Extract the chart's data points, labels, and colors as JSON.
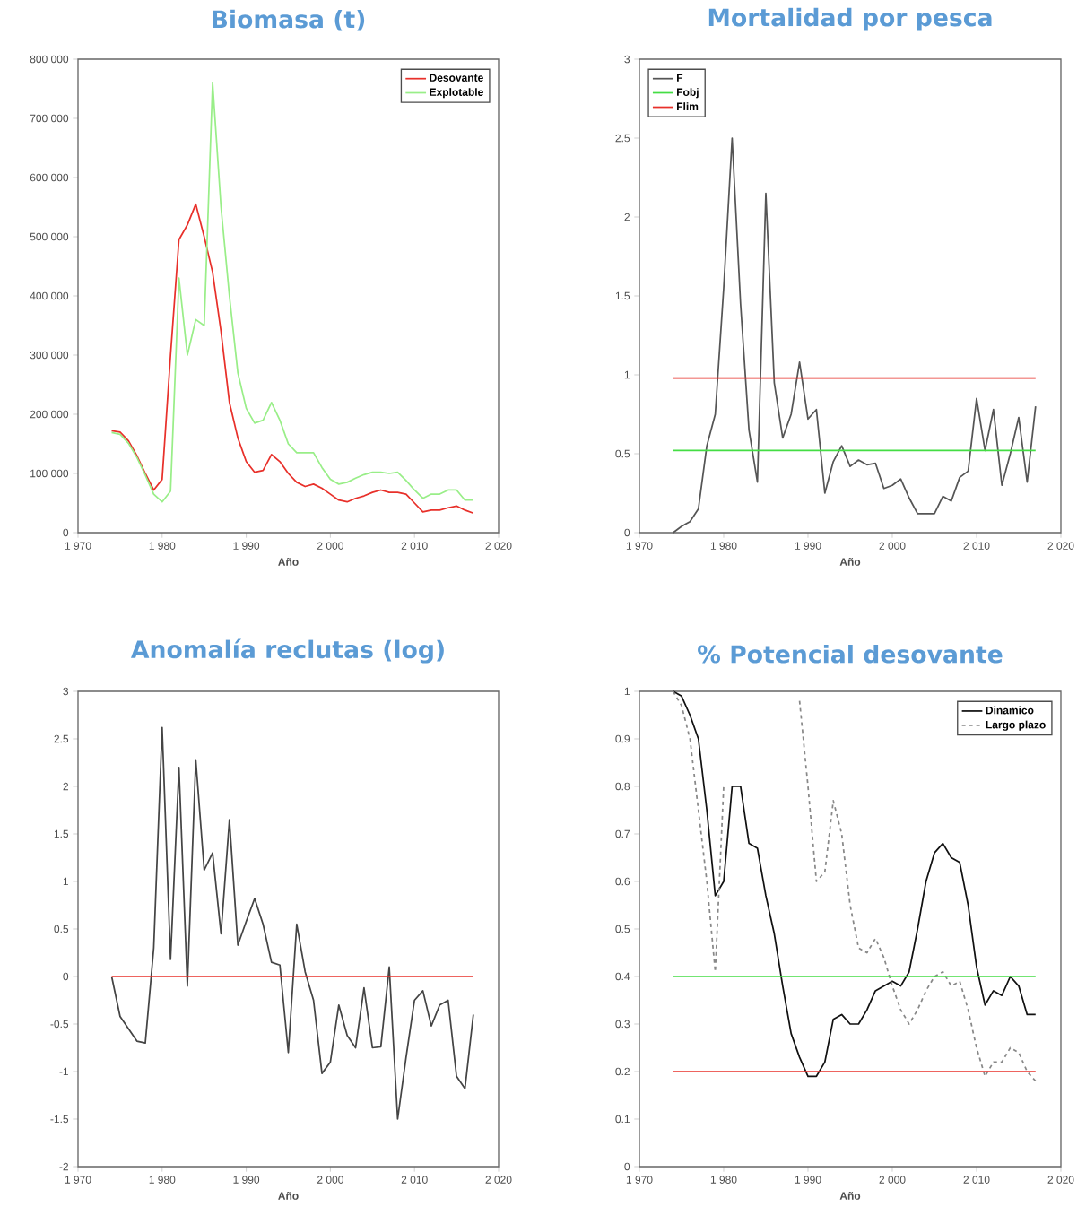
{
  "chart_data": [
    {
      "type": "line",
      "title": "Biomasa (t)",
      "xlabel": "Año",
      "legend": "top right",
      "x": [
        1974,
        1975,
        1976,
        1977,
        1978,
        1979,
        1980,
        1981,
        1982,
        1983,
        1984,
        1985,
        1986,
        1987,
        1988,
        1989,
        1990,
        1991,
        1992,
        1993,
        1994,
        1995,
        1996,
        1997,
        1998,
        1999,
        2000,
        2001,
        2002,
        2003,
        2004,
        2005,
        2006,
        2007,
        2008,
        2009,
        2010,
        2011,
        2012,
        2013,
        2014,
        2015,
        2016,
        2017
      ],
      "series": [
        {
          "name": "Desovante",
          "color": "#e8302a",
          "values": [
            172000,
            170000,
            155000,
            130000,
            100000,
            72000,
            90000,
            300000,
            495000,
            520000,
            555000,
            500000,
            440000,
            340000,
            220000,
            160000,
            120000,
            102000,
            105000,
            132000,
            120000,
            100000,
            85000,
            78000,
            82000,
            75000,
            65000,
            55000,
            52000,
            58000,
            62000,
            68000,
            72000,
            68000,
            68000,
            65000,
            50000,
            35000,
            38000,
            38000,
            42000,
            45000,
            38000,
            33000
          ]
        },
        {
          "name": "Explotable",
          "color": "#99ee88",
          "values": [
            169000,
            166000,
            151000,
            127000,
            97000,
            65000,
            52000,
            70000,
            430000,
            300000,
            360000,
            350000,
            760000,
            550000,
            400000,
            270000,
            210000,
            185000,
            190000,
            220000,
            190000,
            150000,
            135000,
            135000,
            135000,
            110000,
            90000,
            82000,
            85000,
            92000,
            98000,
            102000,
            102000,
            100000,
            102000,
            88000,
            72000,
            58000,
            65000,
            65000,
            72000,
            72000,
            55000,
            55000
          ]
        }
      ],
      "xlim": [
        1970,
        2020
      ],
      "xticks": [
        {
          "value": 1970,
          "label": "1 970"
        },
        {
          "value": 1980,
          "label": "1 980"
        },
        {
          "value": 1990,
          "label": "1 990"
        },
        {
          "value": 2000,
          "label": "2 000"
        },
        {
          "value": 2010,
          "label": "2 010"
        },
        {
          "value": 2020,
          "label": "2 020"
        }
      ],
      "ylim": [
        0,
        800000
      ],
      "yticks": [
        {
          "value": 0,
          "label": "0"
        },
        {
          "value": 100000,
          "label": "100 000"
        },
        {
          "value": 200000,
          "label": "200 000"
        },
        {
          "value": 300000,
          "label": "300 000"
        },
        {
          "value": 400000,
          "label": "400 000"
        },
        {
          "value": 500000,
          "label": "500 000"
        },
        {
          "value": 600000,
          "label": "600 000"
        },
        {
          "value": 700000,
          "label": "700 000"
        },
        {
          "value": 800000,
          "label": "800 000"
        }
      ]
    },
    {
      "type": "line",
      "title": "Mortalidad por pesca",
      "xlabel": "Año",
      "legend": "top left",
      "x": [
        1974,
        1975,
        1976,
        1977,
        1978,
        1979,
        1980,
        1981,
        1982,
        1983,
        1984,
        1985,
        1986,
        1987,
        1988,
        1989,
        1990,
        1991,
        1992,
        1993,
        1994,
        1995,
        1996,
        1997,
        1998,
        1999,
        2000,
        2001,
        2002,
        2003,
        2004,
        2005,
        2006,
        2007,
        2008,
        2009,
        2010,
        2011,
        2012,
        2013,
        2014,
        2015,
        2016,
        2017
      ],
      "series": [
        {
          "name": "F",
          "color": "#555555",
          "values": [
            0,
            0.04,
            0.07,
            0.15,
            0.55,
            0.75,
            1.55,
            2.5,
            1.45,
            0.65,
            0.32,
            2.15,
            0.95,
            0.6,
            0.75,
            1.08,
            0.72,
            0.78,
            0.25,
            0.45,
            0.55,
            0.42,
            0.46,
            0.43,
            0.44,
            0.28,
            0.3,
            0.34,
            0.22,
            0.12,
            0.12,
            0.12,
            0.23,
            0.2,
            0.35,
            0.39,
            0.85,
            0.52,
            0.78,
            0.3,
            0.5,
            0.73,
            0.32,
            0.8
          ]
        },
        {
          "name": "Fobj",
          "color": "#44dd44",
          "values": [
            0.52,
            0.52,
            0.52,
            0.52,
            0.52,
            0.52,
            0.52,
            0.52,
            0.52,
            0.52,
            0.52,
            0.52,
            0.52,
            0.52,
            0.52,
            0.52,
            0.52,
            0.52,
            0.52,
            0.52,
            0.52,
            0.52,
            0.52,
            0.52,
            0.52,
            0.52,
            0.52,
            0.52,
            0.52,
            0.52,
            0.52,
            0.52,
            0.52,
            0.52,
            0.52,
            0.52,
            0.52,
            0.52,
            0.52,
            0.52,
            0.52,
            0.52,
            0.52,
            0.52
          ]
        },
        {
          "name": "Flim",
          "color": "#e8302a",
          "values": [
            0.98,
            0.98,
            0.98,
            0.98,
            0.98,
            0.98,
            0.98,
            0.98,
            0.98,
            0.98,
            0.98,
            0.98,
            0.98,
            0.98,
            0.98,
            0.98,
            0.98,
            0.98,
            0.98,
            0.98,
            0.98,
            0.98,
            0.98,
            0.98,
            0.98,
            0.98,
            0.98,
            0.98,
            0.98,
            0.98,
            0.98,
            0.98,
            0.98,
            0.98,
            0.98,
            0.98,
            0.98,
            0.98,
            0.98,
            0.98,
            0.98,
            0.98,
            0.98,
            0.98
          ]
        }
      ],
      "xlim": [
        1970,
        2020
      ],
      "xticks": [
        {
          "value": 1970,
          "label": "1 970"
        },
        {
          "value": 1980,
          "label": "1 980"
        },
        {
          "value": 1990,
          "label": "1 990"
        },
        {
          "value": 2000,
          "label": "2 000"
        },
        {
          "value": 2010,
          "label": "2 010"
        },
        {
          "value": 2020,
          "label": "2 020"
        }
      ],
      "ylim": [
        0,
        3
      ],
      "yticks": [
        0,
        0.5,
        1,
        1.5,
        2,
        2.5,
        3
      ]
    },
    {
      "type": "line",
      "title": "Anomalía reclutas (log)",
      "xlabel": "Año",
      "x": [
        1974,
        1975,
        1976,
        1977,
        1978,
        1979,
        1980,
        1981,
        1982,
        1983,
        1984,
        1985,
        1986,
        1987,
        1988,
        1989,
        1990,
        1991,
        1992,
        1993,
        1994,
        1995,
        1996,
        1997,
        1998,
        1999,
        2000,
        2001,
        2002,
        2003,
        2004,
        2005,
        2006,
        2007,
        2008,
        2009,
        2010,
        2011,
        2012,
        2013,
        2014,
        2015,
        2016,
        2017
      ],
      "series": [
        {
          "color": "#444444",
          "values": [
            0,
            -0.42,
            -0.55,
            -0.68,
            -0.7,
            0.3,
            2.62,
            0.18,
            2.2,
            -0.1,
            2.28,
            1.12,
            1.3,
            0.45,
            1.65,
            0.33,
            0.58,
            0.82,
            0.55,
            0.15,
            0.12,
            -0.8,
            0.55,
            0.05,
            -0.25,
            -1.02,
            -0.9,
            -0.3,
            -0.62,
            -0.75,
            -0.12,
            -0.75,
            -0.74,
            0.1,
            -1.5,
            -0.85,
            -0.25,
            -0.15,
            -0.52,
            -0.3,
            -0.25,
            -1.05,
            -1.18,
            -0.4
          ]
        },
        {
          "color": "#e8302a",
          "values": [
            0,
            0,
            0,
            0,
            0,
            0,
            0,
            0,
            0,
            0,
            0,
            0,
            0,
            0,
            0,
            0,
            0,
            0,
            0,
            0,
            0,
            0,
            0,
            0,
            0,
            0,
            0,
            0,
            0,
            0,
            0,
            0,
            0,
            0,
            0,
            0,
            0,
            0,
            0,
            0,
            0,
            0,
            0,
            0
          ]
        }
      ],
      "xlim": [
        1970,
        2020
      ],
      "xticks": [
        {
          "value": 1970,
          "label": "1 970"
        },
        {
          "value": 1980,
          "label": "1 980"
        },
        {
          "value": 1990,
          "label": "1 990"
        },
        {
          "value": 2000,
          "label": "2 000"
        },
        {
          "value": 2010,
          "label": "2 010"
        },
        {
          "value": 2020,
          "label": "2 020"
        }
      ],
      "ylim": [
        -2,
        3
      ],
      "yticks": [
        -2,
        -1.5,
        -1,
        -0.5,
        0,
        0.5,
        1,
        1.5,
        2,
        2.5,
        3
      ]
    },
    {
      "type": "line",
      "title": "% Potencial desovante",
      "xlabel": "Año",
      "legend": "top right",
      "x": [
        1974,
        1975,
        1976,
        1977,
        1978,
        1979,
        1980,
        1981,
        1982,
        1983,
        1984,
        1985,
        1986,
        1987,
        1988,
        1989,
        1990,
        1991,
        1992,
        1993,
        1994,
        1995,
        1996,
        1997,
        1998,
        1999,
        2000,
        2001,
        2002,
        2003,
        2004,
        2005,
        2006,
        2007,
        2008,
        2009,
        2010,
        2011,
        2012,
        2013,
        2014,
        2015,
        2016,
        2017
      ],
      "series": [
        {
          "name": "Dinamico",
          "color": "#111111",
          "values": [
            1,
            0.99,
            0.95,
            0.9,
            0.75,
            0.57,
            0.6,
            0.8,
            0.8,
            0.68,
            0.67,
            0.57,
            0.49,
            0.38,
            0.28,
            0.23,
            0.19,
            0.19,
            0.22,
            0.31,
            0.32,
            0.3,
            0.3,
            0.33,
            0.37,
            0.38,
            0.39,
            0.38,
            0.41,
            0.5,
            0.6,
            0.66,
            0.68,
            0.65,
            0.64,
            0.55,
            0.42,
            0.34,
            0.37,
            0.36,
            0.4,
            0.38,
            0.32,
            0.32
          ]
        },
        {
          "name": "Largo plazo",
          "color": "#888888",
          "line_style": "dashed",
          "values": [
            1,
            0.97,
            0.9,
            0.75,
            0.6,
            0.41,
            0.8,
            null,
            null,
            null,
            null,
            null,
            null,
            null,
            null,
            0.98,
            0.8,
            0.6,
            0.62,
            0.77,
            0.7,
            0.55,
            0.46,
            0.45,
            0.48,
            0.44,
            0.38,
            0.33,
            0.3,
            0.33,
            0.37,
            0.4,
            0.41,
            0.38,
            0.39,
            0.33,
            0.25,
            0.19,
            0.22,
            0.22,
            0.25,
            0.24,
            0.2,
            0.18
          ]
        },
        {
          "color": "#44dd44",
          "values": [
            0.4,
            0.4,
            0.4,
            0.4,
            0.4,
            0.4,
            0.4,
            0.4,
            0.4,
            0.4,
            0.4,
            0.4,
            0.4,
            0.4,
            0.4,
            0.4,
            0.4,
            0.4,
            0.4,
            0.4,
            0.4,
            0.4,
            0.4,
            0.4,
            0.4,
            0.4,
            0.4,
            0.4,
            0.4,
            0.4,
            0.4,
            0.4,
            0.4,
            0.4,
            0.4,
            0.4,
            0.4,
            0.4,
            0.4,
            0.4,
            0.4,
            0.4,
            0.4,
            0.4
          ]
        },
        {
          "color": "#e8302a",
          "values": [
            0.2,
            0.2,
            0.2,
            0.2,
            0.2,
            0.2,
            0.2,
            0.2,
            0.2,
            0.2,
            0.2,
            0.2,
            0.2,
            0.2,
            0.2,
            0.2,
            0.2,
            0.2,
            0.2,
            0.2,
            0.2,
            0.2,
            0.2,
            0.2,
            0.2,
            0.2,
            0.2,
            0.2,
            0.2,
            0.2,
            0.2,
            0.2,
            0.2,
            0.2,
            0.2,
            0.2,
            0.2,
            0.2,
            0.2,
            0.2,
            0.2,
            0.2,
            0.2,
            0.2
          ]
        }
      ],
      "xlim": [
        1970,
        2020
      ],
      "xticks": [
        {
          "value": 1970,
          "label": "1 970"
        },
        {
          "value": 1980,
          "label": "1 980"
        },
        {
          "value": 1990,
          "label": "1 990"
        },
        {
          "value": 2000,
          "label": "2 000"
        },
        {
          "value": 2010,
          "label": "2 010"
        },
        {
          "value": 2020,
          "label": "2 020"
        }
      ],
      "ylim": [
        0,
        1
      ],
      "yticks": [
        0,
        0.1,
        0.2,
        0.3,
        0.4,
        0.5,
        0.6,
        0.7,
        0.8,
        0.9,
        1
      ]
    }
  ]
}
